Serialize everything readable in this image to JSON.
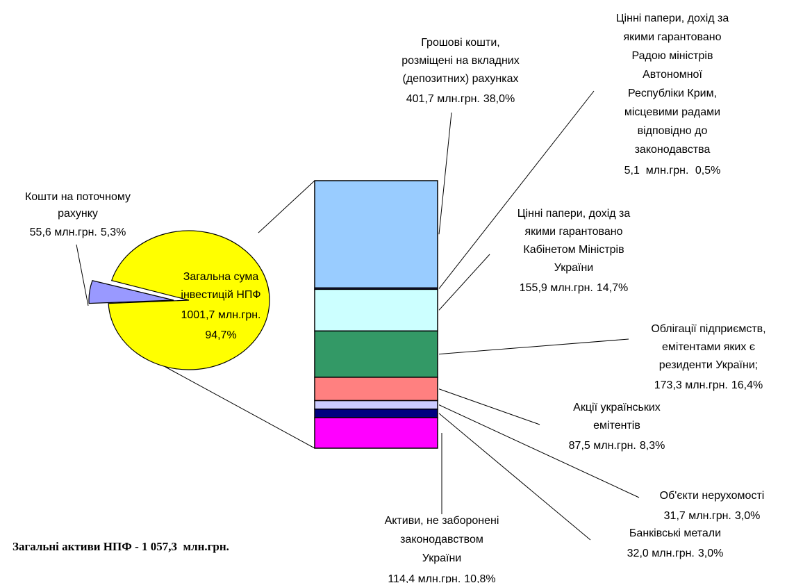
{
  "chart_data": {
    "type": "bar-of-pie",
    "footnote": "Загальні активи НПФ - 1 057,3  млн.грн.",
    "pie": {
      "labels": [
        [
          "Кошти на поточному",
          "рахунку"
        ],
        [
          "Загальна сума",
          "інвестицій НПФ"
        ]
      ],
      "values": [
        55.6,
        1001.7
      ],
      "value_labels": [
        "55,6 млн.грн.",
        "1001,7 млн.грн."
      ],
      "percents": [
        5.3,
        94.7
      ],
      "percent_labels": [
        "5,3%",
        "94,7%"
      ],
      "colors": [
        "#9999ff",
        "#ffff00"
      ]
    },
    "bar": {
      "labels": [
        [
          "Грошові кошти,",
          "розміщені на вкладних",
          "(депозитних) рахунках"
        ],
        [
          "Цінні папери, дохід за",
          "якими гарантовано",
          "Радою міністрів",
          "Автономної",
          "Республіки Крим,",
          "місцевими радами",
          "відповідно до",
          "законодавства"
        ],
        [
          "Цінні папери, дохід за",
          "якими гарантовано",
          "Кабінетом Міністрів",
          "України"
        ],
        [
          "Облігації підприємств,",
          "емітентами яких є",
          "резиденти України;"
        ],
        [
          "Акції українських",
          "емітентів"
        ],
        [
          "Об'єкти нерухомості"
        ],
        [
          "Банківські метали"
        ],
        [
          "Активи, не заборонені",
          "законодавством",
          "України"
        ]
      ],
      "values": [
        401.7,
        5.1,
        155.9,
        173.3,
        87.5,
        31.7,
        32.0,
        114.4
      ],
      "value_labels": [
        "401,7 млн.грн.",
        "5,1  млн.грн. ",
        "155,9 млн.грн.",
        "173,3 млн.грн.",
        "87,5 млн.грн.",
        "31,7 млн.грн.",
        "32,0 млн.грн.",
        "114,4 млн.грн."
      ],
      "percents": [
        38.0,
        0.5,
        14.7,
        16.4,
        8.3,
        3.0,
        3.0,
        10.8
      ],
      "percent_labels": [
        "38,0%",
        "0,5%",
        "14,7%",
        "16,4%",
        "8,3%",
        "3,0%",
        "3,0%",
        "10,8%"
      ],
      "colors": [
        "#99ccff",
        "#333399",
        "#ccffff",
        "#339966",
        "#ff8080",
        "#ccccff",
        "#000080",
        "#ff00ff"
      ]
    }
  }
}
